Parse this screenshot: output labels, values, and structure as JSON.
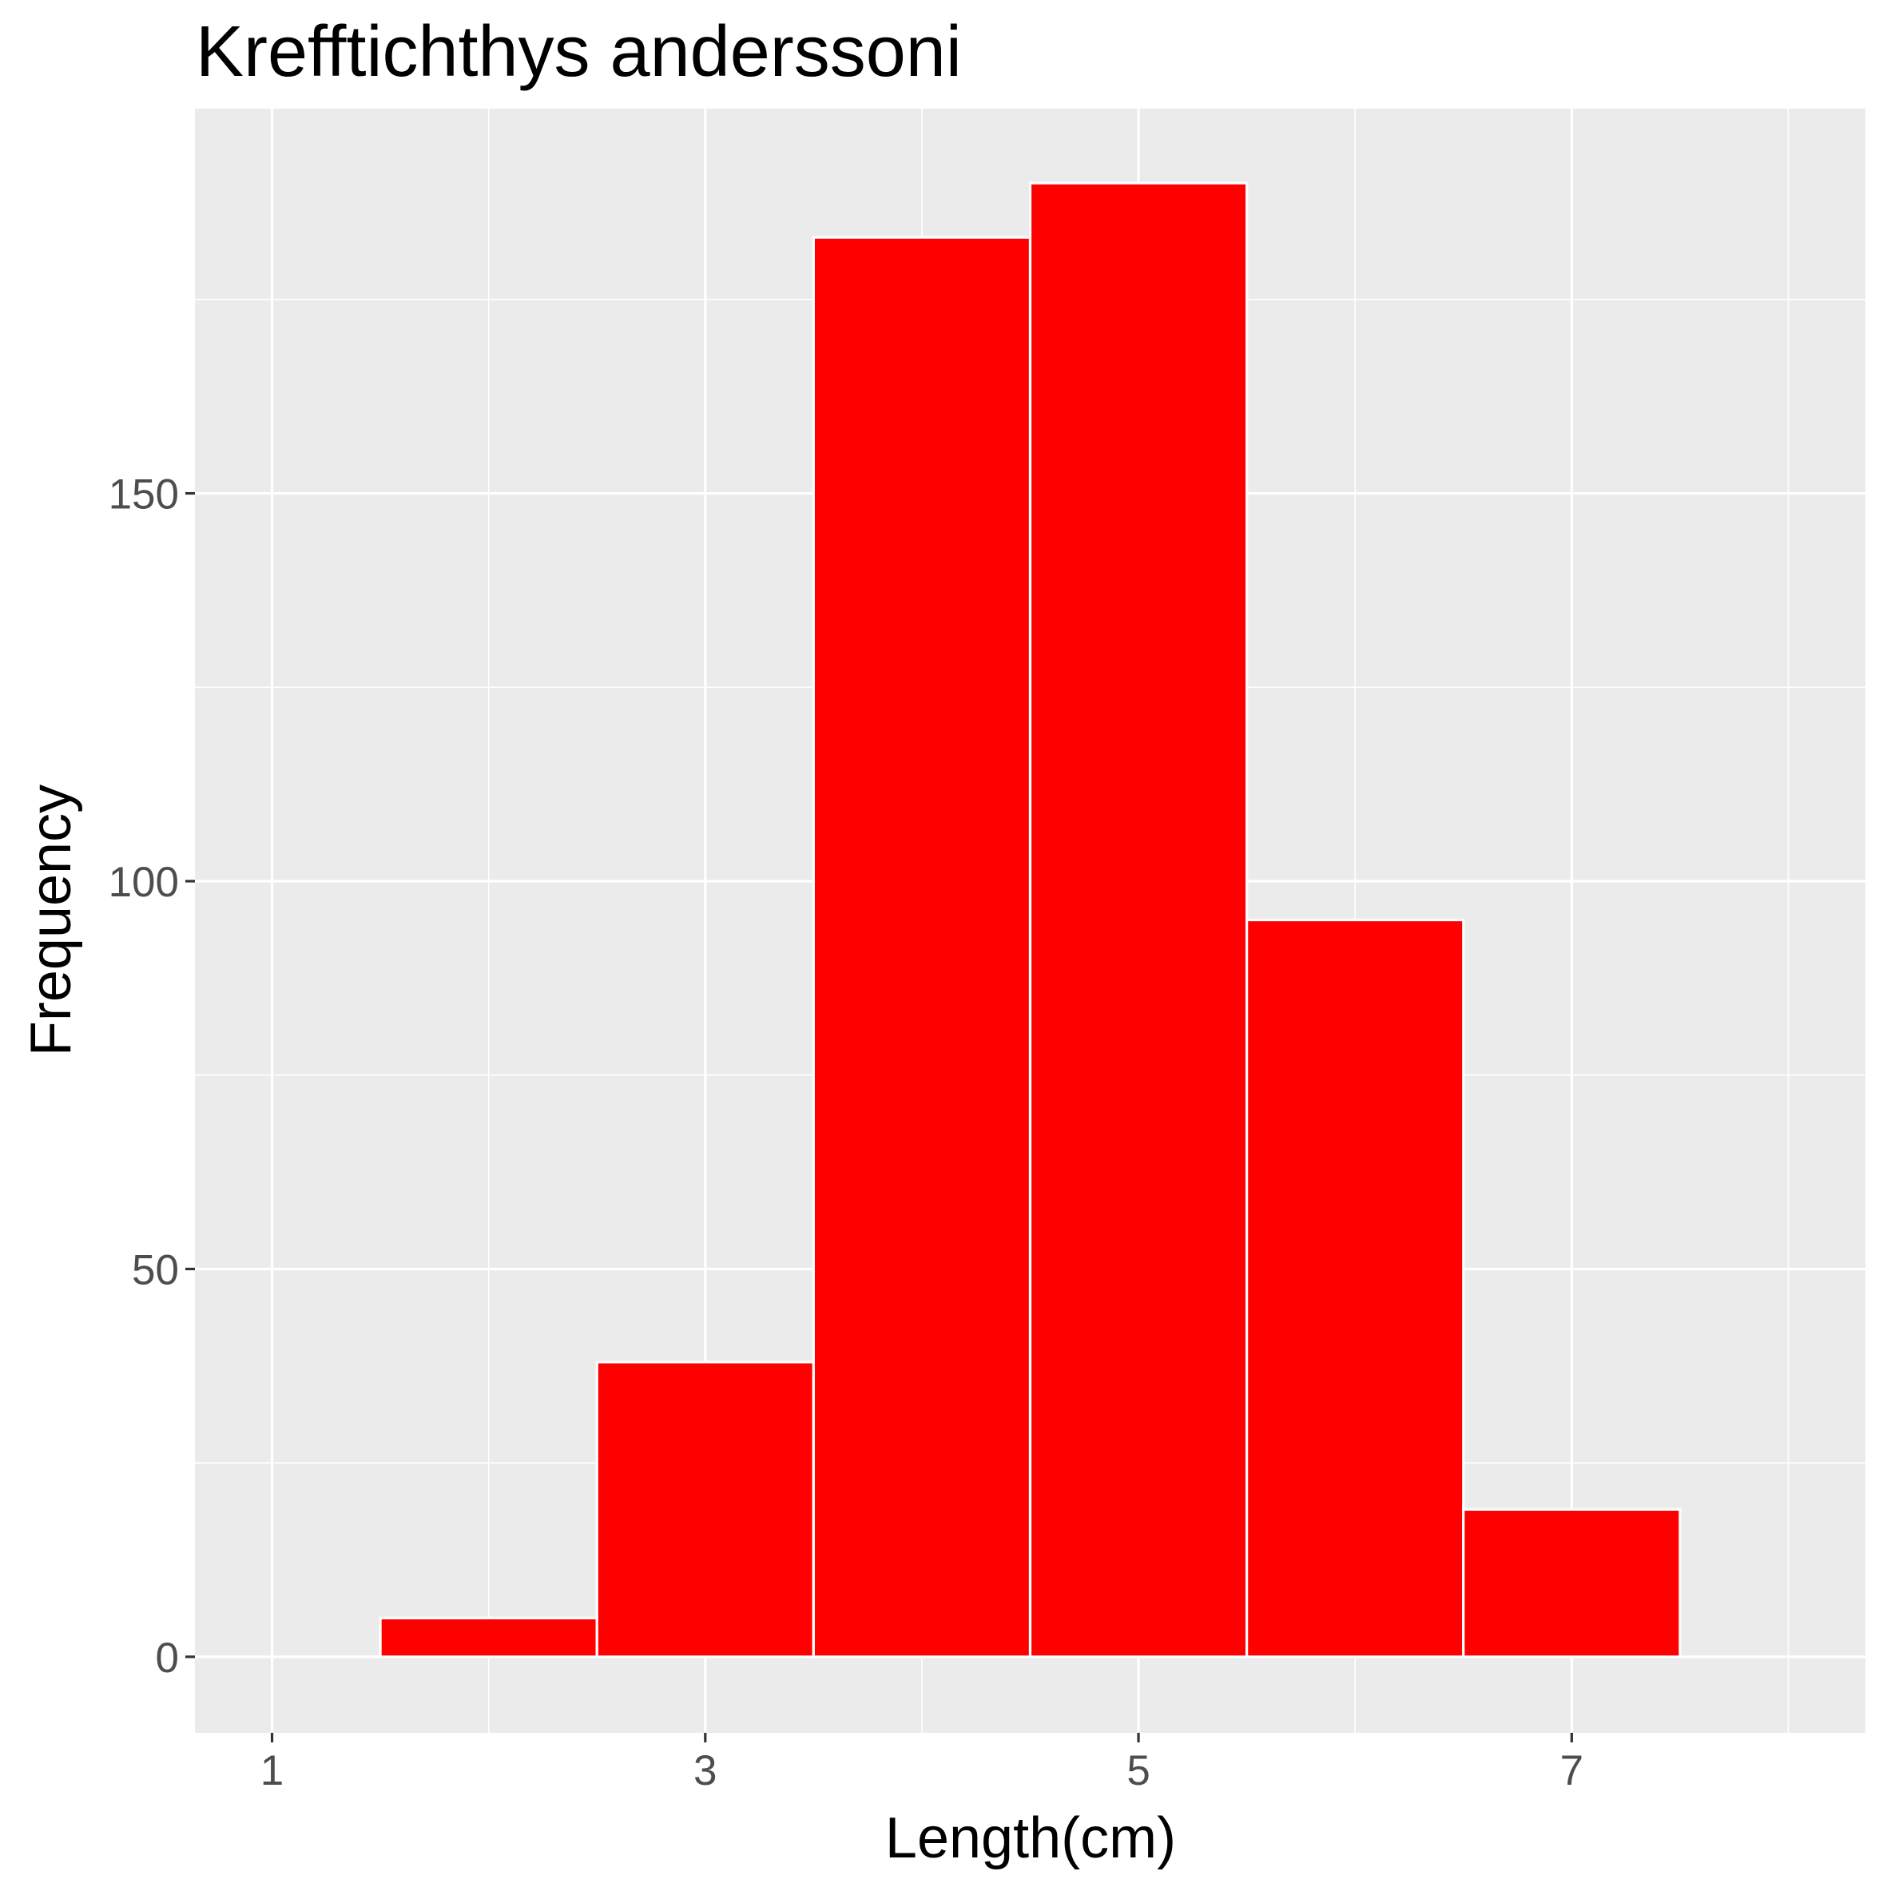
{
  "chart_data": {
    "type": "bar",
    "title": "Krefftichthys anderssoni",
    "xlabel": "Length(cm)",
    "ylabel": "Frequency",
    "bins": [
      {
        "x0": 1.5,
        "x1": 2.5,
        "count": 5
      },
      {
        "x0": 2.5,
        "x1": 3.5,
        "count": 38
      },
      {
        "x0": 3.5,
        "x1": 4.5,
        "count": 183
      },
      {
        "x0": 4.5,
        "x1": 5.5,
        "count": 190
      },
      {
        "x0": 5.5,
        "x1": 6.5,
        "count": 95
      },
      {
        "x0": 6.5,
        "x1": 7.5,
        "count": 19
      }
    ],
    "xlim": [
      0.644,
      8.356
    ],
    "ylim": [
      -9.8,
      199.6
    ],
    "x_ticks": [
      1,
      3,
      5,
      7
    ],
    "x_tick_labels": [
      "1",
      "3",
      "5",
      "7"
    ],
    "x_minor": [
      2,
      4,
      6,
      8
    ],
    "y_ticks": [
      0,
      50,
      100,
      150
    ],
    "y_tick_labels": [
      "0",
      "50",
      "100",
      "150"
    ],
    "y_minor": [
      25,
      75,
      125,
      175
    ],
    "grid": true,
    "legend": "none",
    "colors": {
      "bar_fill": "#ff0000",
      "bar_outline": "#ffffff",
      "panel": "#ebebeb",
      "grid": "#ffffff"
    }
  }
}
